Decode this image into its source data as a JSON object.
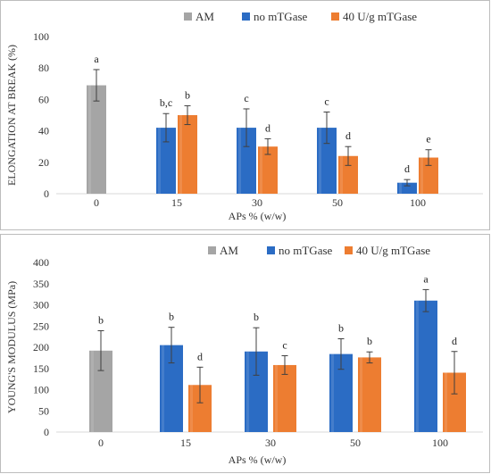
{
  "chart_data": [
    {
      "type": "bar",
      "title": "",
      "xlabel": "APs % (w/w)",
      "ylabel": "ELONGATION AT BREAK (%)",
      "categories": [
        "0",
        "15",
        "30",
        "50",
        "100"
      ],
      "ylim": [
        0,
        100
      ],
      "yticks": [
        "0",
        "20",
        "40",
        "60",
        "80",
        "100"
      ],
      "grid": false,
      "legend_position": "top",
      "series": [
        {
          "name": "AM",
          "color": "#a5a5a5",
          "values": [
            69,
            null,
            null,
            null,
            null
          ],
          "errors": [
            10,
            null,
            null,
            null,
            null
          ],
          "letters": [
            "a",
            null,
            null,
            null,
            null
          ]
        },
        {
          "name": "no mTGase",
          "color": "#2b6cc4",
          "values": [
            null,
            42,
            42,
            42,
            7
          ],
          "errors": [
            null,
            9,
            12,
            10,
            2
          ],
          "letters": [
            null,
            "b,c",
            "c",
            "c",
            "d"
          ]
        },
        {
          "name": "40 U/g mTGase",
          "color": "#ed7d31",
          "values": [
            null,
            50,
            30,
            24,
            23
          ],
          "errors": [
            null,
            6,
            5,
            6,
            5
          ],
          "letters": [
            null,
            "b",
            "d",
            "d",
            "e"
          ]
        }
      ]
    },
    {
      "type": "bar",
      "title": "",
      "xlabel": "APs % (w/w)",
      "ylabel": "YOUNG'S MODULUS (MPa)",
      "categories": [
        "0",
        "15",
        "30",
        "50",
        "100"
      ],
      "ylim": [
        0,
        400
      ],
      "yticks": [
        "0",
        "50",
        "100",
        "150",
        "200",
        "250",
        "300",
        "350",
        "400"
      ],
      "grid": false,
      "legend_position": "top",
      "series": [
        {
          "name": "AM",
          "color": "#a5a5a5",
          "values": [
            192,
            null,
            null,
            null,
            null
          ],
          "errors": [
            47,
            null,
            null,
            null,
            null
          ],
          "letters": [
            "b",
            null,
            null,
            null,
            null
          ]
        },
        {
          "name": "no mTGase",
          "color": "#2b6cc4",
          "values": [
            null,
            205,
            190,
            184,
            310
          ],
          "errors": [
            null,
            42,
            56,
            36,
            26
          ],
          "letters": [
            null,
            "b",
            "b",
            "b",
            "a"
          ]
        },
        {
          "name": "40 U/g mTGase",
          "color": "#ed7d31",
          "values": [
            null,
            111,
            158,
            176,
            140
          ],
          "errors": [
            null,
            42,
            22,
            13,
            50
          ],
          "letters": [
            null,
            "d",
            "c",
            "b",
            "d"
          ]
        }
      ]
    }
  ]
}
